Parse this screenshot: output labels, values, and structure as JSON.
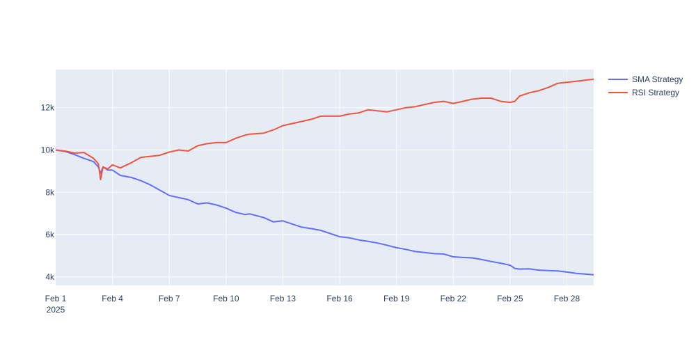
{
  "chart_data": {
    "type": "line",
    "xaxis": {
      "type": "date",
      "range": [
        "2025-02-01",
        "2025-02-29 10:00"
      ],
      "ticks": [
        {
          "date": "2025-02-01",
          "label": "Feb 1",
          "sublabel": "2025"
        },
        {
          "date": "2025-02-04",
          "label": "Feb 4"
        },
        {
          "date": "2025-02-07",
          "label": "Feb 7"
        },
        {
          "date": "2025-02-10",
          "label": "Feb 10"
        },
        {
          "date": "2025-02-13",
          "label": "Feb 13"
        },
        {
          "date": "2025-02-16",
          "label": "Feb 16"
        },
        {
          "date": "2025-02-19",
          "label": "Feb 19"
        },
        {
          "date": "2025-02-22",
          "label": "Feb 22"
        },
        {
          "date": "2025-02-25",
          "label": "Feb 25"
        },
        {
          "date": "2025-02-28",
          "label": "Feb 28"
        }
      ]
    },
    "yaxis": {
      "range": [
        3600,
        13800
      ],
      "ticks": [
        {
          "value": 4000,
          "label": "4k"
        },
        {
          "value": 6000,
          "label": "6k"
        },
        {
          "value": 8000,
          "label": "8k"
        },
        {
          "value": 10000,
          "label": "10k"
        },
        {
          "value": 12000,
          "label": "12k"
        }
      ]
    },
    "grid": true,
    "legend": "top-right",
    "series": [
      {
        "name": "SMA Strategy",
        "color": "#636efa",
        "points": [
          [
            "2025-02-01 00:00",
            10000
          ],
          [
            "2025-02-01 12:00",
            9930
          ],
          [
            "2025-02-02 00:00",
            9780
          ],
          [
            "2025-02-02 12:00",
            9600
          ],
          [
            "2025-02-03 00:00",
            9450
          ],
          [
            "2025-02-03 06:00",
            9200
          ],
          [
            "2025-02-03 09:00",
            8900
          ],
          [
            "2025-02-03 12:00",
            9200
          ],
          [
            "2025-02-03 18:00",
            9050
          ],
          [
            "2025-02-04 00:00",
            9050
          ],
          [
            "2025-02-04 10:00",
            8800
          ],
          [
            "2025-02-05 00:00",
            8700
          ],
          [
            "2025-02-05 12:00",
            8550
          ],
          [
            "2025-02-06 00:00",
            8350
          ],
          [
            "2025-02-06 12:00",
            8100
          ],
          [
            "2025-02-07 00:00",
            7850
          ],
          [
            "2025-02-07 12:00",
            7750
          ],
          [
            "2025-02-08 00:00",
            7650
          ],
          [
            "2025-02-08 12:00",
            7450
          ],
          [
            "2025-02-09 00:00",
            7500
          ],
          [
            "2025-02-09 12:00",
            7400
          ],
          [
            "2025-02-10 00:00",
            7250
          ],
          [
            "2025-02-10 12:00",
            7050
          ],
          [
            "2025-02-11 00:00",
            6950
          ],
          [
            "2025-02-11 06:00",
            6980
          ],
          [
            "2025-02-12 00:00",
            6800
          ],
          [
            "2025-02-12 12:00",
            6600
          ],
          [
            "2025-02-13 00:00",
            6650
          ],
          [
            "2025-02-13 12:00",
            6500
          ],
          [
            "2025-02-14 00:00",
            6350
          ],
          [
            "2025-02-14 12:00",
            6280
          ],
          [
            "2025-02-15 00:00",
            6200
          ],
          [
            "2025-02-15 12:00",
            6050
          ],
          [
            "2025-02-16 00:00",
            5900
          ],
          [
            "2025-02-16 12:00",
            5850
          ],
          [
            "2025-02-17 00:00",
            5750
          ],
          [
            "2025-02-17 12:00",
            5680
          ],
          [
            "2025-02-18 00:00",
            5600
          ],
          [
            "2025-02-18 12:00",
            5500
          ],
          [
            "2025-02-19 00:00",
            5380
          ],
          [
            "2025-02-19 12:00",
            5300
          ],
          [
            "2025-02-20 00:00",
            5200
          ],
          [
            "2025-02-20 12:00",
            5150
          ],
          [
            "2025-02-21 00:00",
            5100
          ],
          [
            "2025-02-21 12:00",
            5080
          ],
          [
            "2025-02-22 00:00",
            4950
          ],
          [
            "2025-02-22 12:00",
            4920
          ],
          [
            "2025-02-23 00:00",
            4900
          ],
          [
            "2025-02-23 12:00",
            4820
          ],
          [
            "2025-02-24 00:00",
            4730
          ],
          [
            "2025-02-24 12:00",
            4650
          ],
          [
            "2025-02-25 00:00",
            4550
          ],
          [
            "2025-02-25 06:00",
            4400
          ],
          [
            "2025-02-25 12:00",
            4370
          ],
          [
            "2025-02-26 00:00",
            4380
          ],
          [
            "2025-02-26 12:00",
            4320
          ],
          [
            "2025-02-27 00:00",
            4300
          ],
          [
            "2025-02-27 12:00",
            4280
          ],
          [
            "2025-02-28 00:00",
            4230
          ],
          [
            "2025-02-28 12:00",
            4170
          ],
          [
            "2025-02-29 10:00",
            4100
          ]
        ]
      },
      {
        "name": "RSI Strategy",
        "color": "#ef553b",
        "points": [
          [
            "2025-02-01 00:00",
            10000
          ],
          [
            "2025-02-01 12:00",
            9950
          ],
          [
            "2025-02-02 00:00",
            9850
          ],
          [
            "2025-02-02 12:00",
            9880
          ],
          [
            "2025-02-03 00:00",
            9600
          ],
          [
            "2025-02-03 06:00",
            9350
          ],
          [
            "2025-02-03 09:00",
            8600
          ],
          [
            "2025-02-03 12:00",
            9200
          ],
          [
            "2025-02-03 18:00",
            9100
          ],
          [
            "2025-02-04 00:00",
            9300
          ],
          [
            "2025-02-04 10:00",
            9150
          ],
          [
            "2025-02-05 00:00",
            9400
          ],
          [
            "2025-02-05 12:00",
            9650
          ],
          [
            "2025-02-06 00:00",
            9700
          ],
          [
            "2025-02-06 12:00",
            9750
          ],
          [
            "2025-02-07 00:00",
            9900
          ],
          [
            "2025-02-07 12:00",
            10000
          ],
          [
            "2025-02-08 00:00",
            9950
          ],
          [
            "2025-02-08 12:00",
            10200
          ],
          [
            "2025-02-09 00:00",
            10300
          ],
          [
            "2025-02-09 12:00",
            10350
          ],
          [
            "2025-02-10 00:00",
            10350
          ],
          [
            "2025-02-10 12:00",
            10550
          ],
          [
            "2025-02-11 00:00",
            10700
          ],
          [
            "2025-02-11 06:00",
            10750
          ],
          [
            "2025-02-12 00:00",
            10800
          ],
          [
            "2025-02-12 12:00",
            10950
          ],
          [
            "2025-02-13 00:00",
            11150
          ],
          [
            "2025-02-13 12:00",
            11250
          ],
          [
            "2025-02-14 00:00",
            11350
          ],
          [
            "2025-02-14 12:00",
            11450
          ],
          [
            "2025-02-15 00:00",
            11600
          ],
          [
            "2025-02-15 12:00",
            11600
          ],
          [
            "2025-02-16 00:00",
            11600
          ],
          [
            "2025-02-16 12:00",
            11700
          ],
          [
            "2025-02-17 00:00",
            11750
          ],
          [
            "2025-02-17 12:00",
            11900
          ],
          [
            "2025-02-18 00:00",
            11850
          ],
          [
            "2025-02-18 12:00",
            11800
          ],
          [
            "2025-02-19 00:00",
            11900
          ],
          [
            "2025-02-19 12:00",
            12000
          ],
          [
            "2025-02-20 00:00",
            12050
          ],
          [
            "2025-02-20 12:00",
            12150
          ],
          [
            "2025-02-21 00:00",
            12250
          ],
          [
            "2025-02-21 12:00",
            12300
          ],
          [
            "2025-02-22 00:00",
            12200
          ],
          [
            "2025-02-22 12:00",
            12300
          ],
          [
            "2025-02-23 00:00",
            12400
          ],
          [
            "2025-02-23 12:00",
            12450
          ],
          [
            "2025-02-24 00:00",
            12450
          ],
          [
            "2025-02-24 12:00",
            12300
          ],
          [
            "2025-02-25 00:00",
            12250
          ],
          [
            "2025-02-25 06:00",
            12300
          ],
          [
            "2025-02-25 12:00",
            12550
          ],
          [
            "2025-02-26 00:00",
            12700
          ],
          [
            "2025-02-26 12:00",
            12800
          ],
          [
            "2025-02-27 00:00",
            12950
          ],
          [
            "2025-02-27 12:00",
            13150
          ],
          [
            "2025-02-28 00:00",
            13200
          ],
          [
            "2025-02-28 12:00",
            13250
          ],
          [
            "2025-02-29 10:00",
            13350
          ]
        ]
      }
    ]
  }
}
